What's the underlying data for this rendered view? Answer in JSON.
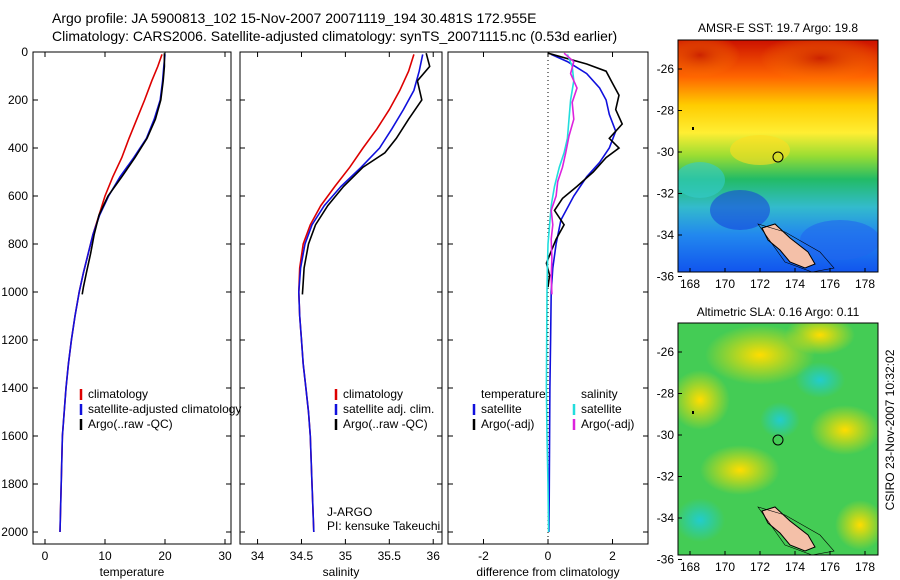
{
  "header": {
    "line1": "Argo profile: JA 5900813_102 15-Nov-2007 20071119_194 30.481S 172.955E",
    "line2": "Climatology: CARS2006. Satellite-adjusted climatology: synTS_20071115.nc (0.53d earlier)"
  },
  "colors": {
    "climatology": "#dd0000",
    "satellite": "#1010dd",
    "argo": "#000000",
    "salinity_satellite": "#22dddd",
    "salinity_argo": "#dd22dd"
  },
  "chart_data": [
    {
      "id": "temperature",
      "type": "line",
      "xlabel": "temperature",
      "ylabel": "",
      "xlim": [
        -2,
        31
      ],
      "ylim": [
        2050,
        0
      ],
      "xticks": [
        0,
        10,
        20,
        30
      ],
      "yticks": [
        0,
        200,
        400,
        600,
        800,
        1000,
        1200,
        1400,
        1600,
        1800,
        2000
      ],
      "legend": [
        "climatology",
        "satellite-adjusted climatology",
        "Argo(..raw -QC)"
      ],
      "legend_position": "lower-right",
      "series": [
        {
          "name": "climatology",
          "color": "#dd0000",
          "points": [
            [
              19.5,
              10
            ],
            [
              18.8,
              60
            ],
            [
              17.8,
              120
            ],
            [
              16.6,
              200
            ],
            [
              15.3,
              280
            ],
            [
              14.0,
              360
            ],
            [
              12.8,
              440
            ],
            [
              11.3,
              520
            ],
            [
              10.0,
              600
            ],
            [
              9.0,
              680
            ],
            [
              8.0,
              760
            ],
            [
              7.2,
              840
            ],
            [
              6.4,
              920
            ],
            [
              5.7,
              1000
            ],
            [
              5.0,
              1100
            ],
            [
              4.4,
              1200
            ],
            [
              3.9,
              1300
            ],
            [
              3.5,
              1400
            ],
            [
              3.2,
              1500
            ],
            [
              2.9,
              1600
            ],
            [
              2.7,
              1800
            ],
            [
              2.5,
              2000
            ]
          ]
        },
        {
          "name": "satellite-adjusted climatology",
          "color": "#1010dd",
          "points": [
            [
              20.0,
              10
            ],
            [
              19.8,
              60
            ],
            [
              19.6,
              120
            ],
            [
              19.2,
              200
            ],
            [
              18.2,
              280
            ],
            [
              16.9,
              360
            ],
            [
              14.8,
              440
            ],
            [
              12.5,
              520
            ],
            [
              10.6,
              600
            ],
            [
              9.1,
              680
            ],
            [
              8.0,
              760
            ],
            [
              7.2,
              840
            ],
            [
              6.4,
              920
            ],
            [
              5.7,
              1000
            ],
            [
              5.0,
              1100
            ],
            [
              4.4,
              1200
            ],
            [
              3.9,
              1300
            ],
            [
              3.5,
              1400
            ],
            [
              3.2,
              1500
            ],
            [
              2.9,
              1600
            ],
            [
              2.7,
              1800
            ],
            [
              2.5,
              2000
            ]
          ]
        },
        {
          "name": "Argo(..raw -QC)",
          "color": "#000000",
          "points": [
            [
              19.9,
              5
            ],
            [
              19.9,
              60
            ],
            [
              19.7,
              120
            ],
            [
              19.3,
              200
            ],
            [
              18.4,
              280
            ],
            [
              17.0,
              360
            ],
            [
              15.0,
              440
            ],
            [
              12.8,
              520
            ],
            [
              10.5,
              600
            ],
            [
              9.0,
              680
            ],
            [
              8.2,
              760
            ],
            [
              7.6,
              840
            ],
            [
              6.9,
              920
            ],
            [
              6.4,
              980
            ],
            [
              6.2,
              1010
            ]
          ]
        }
      ]
    },
    {
      "id": "salinity",
      "type": "line",
      "xlabel": "salinity",
      "ylabel": "",
      "xlim": [
        33.8,
        36.1
      ],
      "ylim": [
        2050,
        0
      ],
      "xticks": [
        34,
        34.5,
        35,
        35.5,
        36
      ],
      "xtick_labels": [
        "34",
        "34.5",
        "35",
        "35.5",
        "36"
      ],
      "legend": [
        "climatology",
        "satellite adj. clim.",
        "Argo(..raw -QC)"
      ],
      "legend_position": "lower-right",
      "annotation": [
        "J-ARGO",
        "PI: kensuke Takeuchi"
      ],
      "series": [
        {
          "name": "climatology",
          "color": "#dd0000",
          "points": [
            [
              35.78,
              10
            ],
            [
              35.72,
              80
            ],
            [
              35.62,
              160
            ],
            [
              35.5,
              240
            ],
            [
              35.36,
              320
            ],
            [
              35.2,
              400
            ],
            [
              35.05,
              480
            ],
            [
              34.88,
              560
            ],
            [
              34.72,
              640
            ],
            [
              34.6,
              720
            ],
            [
              34.52,
              800
            ],
            [
              34.48,
              900
            ],
            [
              34.47,
              1000
            ],
            [
              34.48,
              1100
            ],
            [
              34.5,
              1200
            ],
            [
              34.52,
              1300
            ],
            [
              34.55,
              1400
            ],
            [
              34.58,
              1500
            ],
            [
              34.6,
              1600
            ],
            [
              34.62,
              1800
            ],
            [
              34.64,
              2000
            ]
          ]
        },
        {
          "name": "satellite adj. clim.",
          "color": "#1010dd",
          "points": [
            [
              35.88,
              10
            ],
            [
              35.84,
              80
            ],
            [
              35.78,
              160
            ],
            [
              35.66,
              240
            ],
            [
              35.53,
              320
            ],
            [
              35.39,
              400
            ],
            [
              35.18,
              480
            ],
            [
              34.95,
              560
            ],
            [
              34.76,
              640
            ],
            [
              34.62,
              720
            ],
            [
              34.54,
              800
            ],
            [
              34.49,
              900
            ],
            [
              34.47,
              1000
            ],
            [
              34.48,
              1100
            ],
            [
              34.5,
              1200
            ],
            [
              34.52,
              1300
            ],
            [
              34.55,
              1400
            ],
            [
              34.58,
              1500
            ],
            [
              34.6,
              1600
            ],
            [
              34.62,
              1800
            ],
            [
              34.64,
              2000
            ]
          ]
        },
        {
          "name": "Argo(..raw -QC)",
          "color": "#000000",
          "points": [
            [
              35.92,
              5
            ],
            [
              35.96,
              60
            ],
            [
              35.82,
              120
            ],
            [
              35.87,
              200
            ],
            [
              35.72,
              280
            ],
            [
              35.58,
              360
            ],
            [
              35.45,
              420
            ],
            [
              35.2,
              480
            ],
            [
              34.98,
              560
            ],
            [
              34.8,
              640
            ],
            [
              34.66,
              720
            ],
            [
              34.58,
              800
            ],
            [
              34.53,
              900
            ],
            [
              34.52,
              960
            ],
            [
              34.51,
              1010
            ]
          ]
        }
      ]
    },
    {
      "id": "difference",
      "type": "line",
      "xlabel": "difference from climatology",
      "ylabel": "",
      "xlim": [
        -3.1,
        3.1
      ],
      "ylim": [
        2050,
        0
      ],
      "xticks": [
        -2,
        0,
        2
      ],
      "legend_columns": [
        {
          "title": "temperature",
          "entries": [
            "satellite",
            "Argo(-adj)"
          ]
        },
        {
          "title": "salinity",
          "entries": [
            "satellite",
            "Argo(-adj)"
          ]
        }
      ],
      "series": [
        {
          "name": "temperature satellite",
          "color": "#1010dd",
          "points": [
            [
              0.1,
              10
            ],
            [
              0.6,
              40
            ],
            [
              1.2,
              90
            ],
            [
              1.6,
              150
            ],
            [
              1.8,
              200
            ],
            [
              1.9,
              260
            ],
            [
              2.1,
              330
            ],
            [
              1.9,
              400
            ],
            [
              1.6,
              460
            ],
            [
              1.2,
              520
            ],
            [
              0.8,
              600
            ],
            [
              0.4,
              700
            ],
            [
              0.25,
              800
            ],
            [
              0.15,
              900
            ],
            [
              0.1,
              1000
            ],
            [
              0.08,
              1200
            ],
            [
              0.06,
              1400
            ],
            [
              0.05,
              1600
            ],
            [
              0.04,
              1800
            ],
            [
              0.03,
              2000
            ]
          ]
        },
        {
          "name": "temperature Argo(-adj)",
          "color": "#000000",
          "points": [
            [
              0.0,
              5
            ],
            [
              1.2,
              50
            ],
            [
              1.8,
              80
            ],
            [
              2.0,
              130
            ],
            [
              2.2,
              180
            ],
            [
              2.1,
              240
            ],
            [
              2.3,
              300
            ],
            [
              1.9,
              360
            ],
            [
              2.2,
              400
            ],
            [
              1.8,
              440
            ],
            [
              1.4,
              500
            ],
            [
              0.9,
              560
            ],
            [
              0.45,
              610
            ],
            [
              0.2,
              660
            ],
            [
              0.5,
              720
            ],
            [
              0.25,
              780
            ],
            [
              0.1,
              830
            ],
            [
              -0.05,
              880
            ],
            [
              0.05,
              930
            ],
            [
              0.0,
              980
            ]
          ]
        },
        {
          "name": "salinity satellite",
          "color": "#22dddd",
          "points": [
            [
              0.6,
              10
            ],
            [
              0.75,
              60
            ],
            [
              0.8,
              120
            ],
            [
              0.7,
              200
            ],
            [
              0.65,
              280
            ],
            [
              0.6,
              360
            ],
            [
              0.5,
              420
            ],
            [
              0.35,
              480
            ],
            [
              0.2,
              560
            ],
            [
              0.1,
              640
            ],
            [
              0.05,
              720
            ],
            [
              0.0,
              800
            ],
            [
              -0.02,
              900
            ],
            [
              -0.03,
              1000
            ],
            [
              -0.04,
              1200
            ],
            [
              -0.05,
              1400
            ],
            [
              -0.03,
              1600
            ],
            [
              0.0,
              1800
            ],
            [
              0.02,
              2000
            ]
          ]
        },
        {
          "name": "salinity Argo(-adj)",
          "color": "#dd22dd",
          "points": [
            [
              0.5,
              5
            ],
            [
              0.8,
              40
            ],
            [
              0.7,
              90
            ],
            [
              0.9,
              150
            ],
            [
              0.75,
              210
            ],
            [
              0.8,
              280
            ],
            [
              0.65,
              350
            ],
            [
              0.55,
              420
            ],
            [
              0.45,
              480
            ],
            [
              0.3,
              540
            ],
            [
              0.25,
              600
            ],
            [
              0.1,
              660
            ],
            [
              0.15,
              720
            ],
            [
              0.1,
              780
            ],
            [
              0.12,
              860
            ],
            [
              0.1,
              940
            ],
            [
              0.12,
              1010
            ]
          ]
        }
      ]
    }
  ],
  "maps": [
    {
      "title": "AMSR-E SST: 19.7 Argo: 19.8",
      "xticks": [
        "168",
        "170",
        "172",
        "174",
        "176",
        "178"
      ],
      "yticks": [
        "-26",
        "-28",
        "-30",
        "-32",
        "-34",
        "-36"
      ]
    },
    {
      "title": "Altimetric SLA: 0.16 Argo: 0.11",
      "xticks": [
        "168",
        "170",
        "172",
        "174",
        "176",
        "178"
      ],
      "yticks": [
        "-26",
        "-28",
        "-30",
        "-32",
        "-34",
        "-36"
      ]
    }
  ],
  "credit": "CSIRO 23-Nov-2007 10:32:02"
}
